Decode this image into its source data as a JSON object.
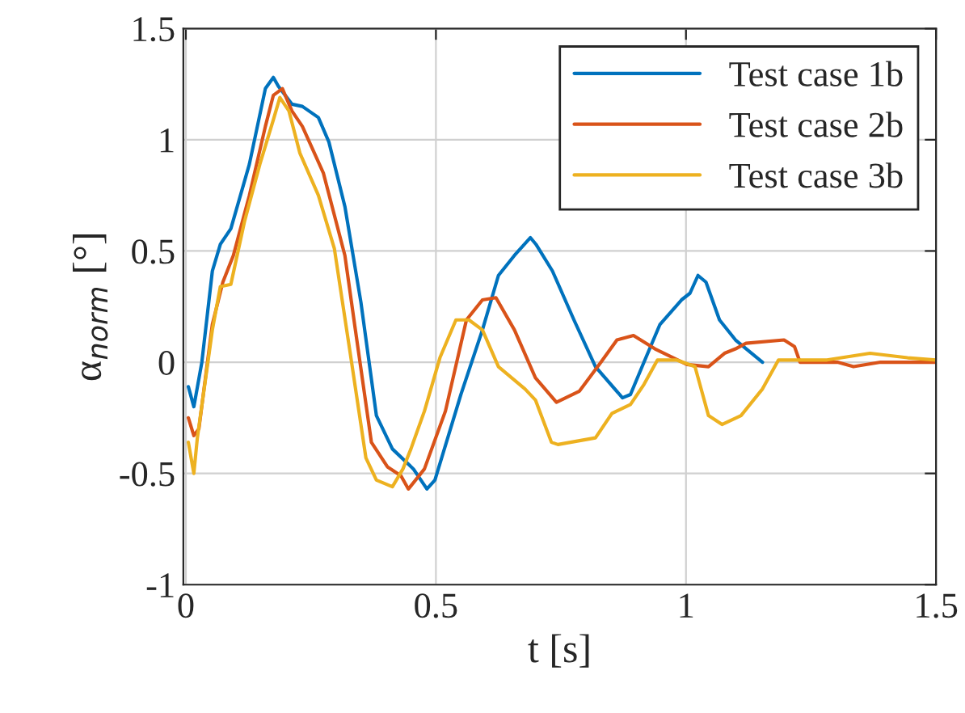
{
  "chart_data": {
    "type": "line",
    "xlabel": "t [s]",
    "ylabel": "α$_{norm}$ [°]",
    "xlim": [
      -0.005,
      1.5
    ],
    "ylim": [
      -1,
      1.5
    ],
    "xticks": [
      0,
      0.5,
      1,
      1.5
    ],
    "yticks": [
      -1,
      -0.5,
      0,
      0.5,
      1,
      1.5
    ],
    "grid": true,
    "legend": "top right",
    "line_style": "solid",
    "marker": "none",
    "series": [
      {
        "name": "Test case 1b",
        "color": "#0072bd",
        "x": [
          0.005,
          0.016,
          0.032,
          0.053,
          0.069,
          0.09,
          0.127,
          0.159,
          0.175,
          0.185,
          0.212,
          0.233,
          0.265,
          0.286,
          0.318,
          0.35,
          0.381,
          0.413,
          0.455,
          0.482,
          0.498,
          0.55,
          0.593,
          0.625,
          0.657,
          0.689,
          0.7,
          0.733,
          0.776,
          0.819,
          0.873,
          0.889,
          0.916,
          0.948,
          0.991,
          1.008,
          1.024,
          1.04,
          1.067,
          1.099,
          1.153
        ],
        "values": [
          -0.11,
          -0.2,
          0,
          0.41,
          0.53,
          0.6,
          0.89,
          1.23,
          1.28,
          1.24,
          1.16,
          1.15,
          1.1,
          0.99,
          0.7,
          0.27,
          -0.24,
          -0.39,
          -0.48,
          -0.57,
          -0.53,
          -0.145,
          0.145,
          0.39,
          0.48,
          0.56,
          0.53,
          0.41,
          0.19,
          -0.02,
          -0.16,
          -0.145,
          0,
          0.17,
          0.28,
          0.31,
          0.39,
          0.36,
          0.19,
          0.1,
          0
        ]
      },
      {
        "name": "Test case 2b",
        "color": "#d95319",
        "x": [
          0.005,
          0.016,
          0.026,
          0.053,
          0.074,
          0.095,
          0.127,
          0.159,
          0.175,
          0.193,
          0.212,
          0.233,
          0.275,
          0.318,
          0.339,
          0.371,
          0.403,
          0.43,
          0.445,
          0.477,
          0.519,
          0.561,
          0.593,
          0.62,
          0.657,
          0.699,
          0.741,
          0.787,
          0.83,
          0.862,
          0.895,
          0.938,
          1.002,
          1.045,
          1.077,
          1.099,
          1.12,
          1.196,
          1.217,
          1.228,
          1.303,
          1.335,
          1.389,
          1.5
        ],
        "values": [
          -0.25,
          -0.33,
          -0.3,
          0.17,
          0.36,
          0.48,
          0.75,
          1.06,
          1.2,
          1.23,
          1.13,
          1.06,
          0.85,
          0.48,
          0.145,
          -0.36,
          -0.47,
          -0.51,
          -0.57,
          -0.48,
          -0.22,
          0.19,
          0.28,
          0.29,
          0.145,
          -0.07,
          -0.18,
          -0.13,
          0,
          0.1,
          0.12,
          0.06,
          -0.01,
          -0.02,
          0.04,
          0.06,
          0.085,
          0.1,
          0.07,
          0,
          0,
          -0.02,
          0,
          0
        ]
      },
      {
        "name": "Test case 3b",
        "color": "#edb120",
        "x": [
          0.005,
          0.016,
          0.023,
          0.053,
          0.069,
          0.09,
          0.117,
          0.148,
          0.175,
          0.188,
          0.206,
          0.228,
          0.265,
          0.297,
          0.328,
          0.36,
          0.381,
          0.413,
          0.434,
          0.45,
          0.477,
          0.508,
          0.54,
          0.566,
          0.593,
          0.625,
          0.678,
          0.699,
          0.731,
          0.744,
          0.819,
          0.852,
          0.889,
          0.916,
          0.943,
          0.981,
          1.018,
          1.045,
          1.072,
          1.11,
          1.153,
          1.185,
          1.282,
          1.368,
          1.443,
          1.5
        ],
        "values": [
          -0.36,
          -0.5,
          -0.34,
          0.145,
          0.34,
          0.35,
          0.63,
          0.89,
          1.09,
          1.19,
          1.13,
          0.94,
          0.75,
          0.51,
          0.05,
          -0.43,
          -0.53,
          -0.56,
          -0.48,
          -0.39,
          -0.22,
          0.02,
          0.19,
          0.19,
          0.145,
          -0.02,
          -0.12,
          -0.17,
          -0.36,
          -0.37,
          -0.34,
          -0.23,
          -0.19,
          -0.1,
          0.01,
          0.01,
          -0.02,
          -0.24,
          -0.28,
          -0.24,
          -0.12,
          0.01,
          0.01,
          0.04,
          0.02,
          0.01
        ]
      }
    ]
  }
}
